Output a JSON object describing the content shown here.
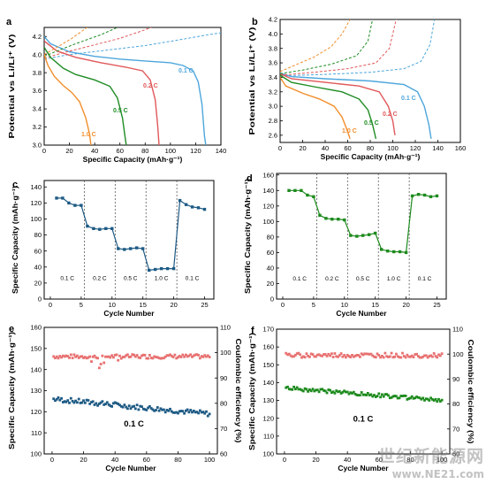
{
  "colors": {
    "c01": "#4da6dc",
    "c02": "#e15759",
    "c05": "#1e8c23",
    "c10": "#f28e2b",
    "blue": "#1d5a84",
    "red": "#e87070",
    "green": "#1d8a1d"
  },
  "watermark": {
    "line1": "世纪新能源网",
    "line2": "www.NE21.com"
  },
  "chart_data": [
    {
      "id": "a",
      "panel_label": "a",
      "type": "line",
      "xlabel": "Specific Capacity (mAh·g⁻¹)",
      "ylabel": "Potential vs Li/Li⁺ (V)",
      "xlim": [
        0,
        140
      ],
      "ylim": [
        3.0,
        4.3
      ],
      "xticks": [
        0,
        20,
        40,
        60,
        80,
        100,
        120,
        140
      ],
      "yticks": [
        3.0,
        3.2,
        3.4,
        3.6,
        3.8,
        4.0,
        4.2
      ],
      "yticklabels": [
        "3.0",
        "3.2",
        "3.4",
        "3.6",
        "3.8",
        "4.0",
        "4.2"
      ],
      "series": [
        {
          "name": "0.1 C",
          "color": "c01",
          "discharge": [
            [
              0,
              4.2
            ],
            [
              5,
              4.12
            ],
            [
              20,
              4.03
            ],
            [
              40,
              3.98
            ],
            [
              60,
              3.95
            ],
            [
              80,
              3.93
            ],
            [
              100,
              3.91
            ],
            [
              110,
              3.88
            ],
            [
              118,
              3.82
            ],
            [
              122,
              3.7
            ],
            [
              125,
              3.45
            ],
            [
              127,
              3.1
            ],
            [
              128,
              3.0
            ]
          ],
          "charge": [
            [
              0,
              3.95
            ],
            [
              20,
              4.0
            ],
            [
              50,
              4.05
            ],
            [
              80,
              4.1
            ],
            [
              110,
              4.17
            ],
            [
              130,
              4.22
            ],
            [
              145,
              4.25
            ]
          ]
        },
        {
          "name": "0.2 C",
          "color": "c02",
          "discharge": [
            [
              0,
              4.15
            ],
            [
              10,
              4.04
            ],
            [
              25,
              3.97
            ],
            [
              45,
              3.91
            ],
            [
              65,
              3.86
            ],
            [
              78,
              3.82
            ],
            [
              84,
              3.72
            ],
            [
              88,
              3.5
            ],
            [
              90,
              3.2
            ],
            [
              91,
              3.0
            ]
          ],
          "charge": [
            [
              0,
              3.96
            ],
            [
              15,
              4.02
            ],
            [
              35,
              4.09
            ],
            [
              60,
              4.18
            ],
            [
              75,
              4.25
            ],
            [
              85,
              4.3
            ]
          ]
        },
        {
          "name": "0.5 C",
          "color": "c05",
          "discharge": [
            [
              0,
              4.08
            ],
            [
              5,
              3.97
            ],
            [
              15,
              3.85
            ],
            [
              25,
              3.78
            ],
            [
              40,
              3.72
            ],
            [
              52,
              3.65
            ],
            [
              58,
              3.52
            ],
            [
              62,
              3.3
            ],
            [
              64,
              3.1
            ],
            [
              65,
              3.0
            ]
          ],
          "charge": [
            [
              0,
              3.98
            ],
            [
              12,
              4.05
            ],
            [
              25,
              4.12
            ],
            [
              45,
              4.22
            ],
            [
              58,
              4.3
            ]
          ]
        },
        {
          "name": "1.0 C",
          "color": "c10",
          "discharge": [
            [
              0,
              4.0
            ],
            [
              3,
              3.88
            ],
            [
              8,
              3.76
            ],
            [
              15,
              3.66
            ],
            [
              22,
              3.58
            ],
            [
              28,
              3.48
            ],
            [
              33,
              3.3
            ],
            [
              36,
              3.12
            ],
            [
              37,
              3.0
            ]
          ],
          "charge": [
            [
              0,
              4.0
            ],
            [
              10,
              4.08
            ],
            [
              22,
              4.18
            ],
            [
              34,
              4.3
            ]
          ]
        }
      ],
      "annotations": [
        {
          "text": "0.1 C",
          "color": "c01"
        },
        {
          "text": "0.2 C",
          "color": "c02"
        },
        {
          "text": "0.5 C",
          "color": "c05"
        },
        {
          "text": "1.0 C",
          "color": "c10"
        }
      ]
    },
    {
      "id": "b",
      "panel_label": "b",
      "type": "line",
      "xlabel": "Specific Capacity (mAh·g⁻¹)",
      "ylabel": "Potential vs Li/Li⁺ (V)",
      "xlim": [
        0,
        160
      ],
      "ylim": [
        2.5,
        4.2
      ],
      "xticks": [
        0,
        20,
        40,
        60,
        80,
        100,
        120,
        140,
        160
      ],
      "yticks": [
        2.6,
        2.8,
        3.0,
        3.2,
        3.4,
        3.6,
        3.8,
        4.0,
        4.2
      ],
      "yticklabels": [
        "2.6",
        "2.8",
        "3.0",
        "3.2",
        "3.4",
        "3.6",
        "3.8",
        "4.0",
        "4.2"
      ],
      "series": [
        {
          "name": "0.1 C",
          "color": "c01",
          "discharge": [
            [
              0,
              3.46
            ],
            [
              10,
              3.41
            ],
            [
              40,
              3.38
            ],
            [
              80,
              3.35
            ],
            [
              110,
              3.3
            ],
            [
              122,
              3.2
            ],
            [
              128,
              3.0
            ],
            [
              132,
              2.75
            ],
            [
              134,
              2.55
            ]
          ],
          "charge": [
            [
              0,
              3.42
            ],
            [
              40,
              3.44
            ],
            [
              80,
              3.47
            ],
            [
              110,
              3.52
            ],
            [
              125,
              3.62
            ],
            [
              133,
              3.85
            ],
            [
              137,
              4.2
            ]
          ]
        },
        {
          "name": "0.2 C",
          "color": "c02",
          "discharge": [
            [
              0,
              3.45
            ],
            [
              10,
              3.38
            ],
            [
              40,
              3.33
            ],
            [
              70,
              3.28
            ],
            [
              88,
              3.2
            ],
            [
              96,
              3.0
            ],
            [
              100,
              2.8
            ],
            [
              102,
              2.6
            ]
          ],
          "charge": [
            [
              0,
              3.43
            ],
            [
              30,
              3.47
            ],
            [
              60,
              3.52
            ],
            [
              85,
              3.6
            ],
            [
              97,
              3.8
            ],
            [
              103,
              4.2
            ]
          ]
        },
        {
          "name": "0.5 C",
          "color": "c05",
          "discharge": [
            [
              0,
              3.43
            ],
            [
              10,
              3.33
            ],
            [
              30,
              3.27
            ],
            [
              55,
              3.2
            ],
            [
              70,
              3.1
            ],
            [
              78,
              2.95
            ],
            [
              82,
              2.75
            ],
            [
              85,
              2.55
            ]
          ],
          "charge": [
            [
              0,
              3.45
            ],
            [
              20,
              3.5
            ],
            [
              45,
              3.58
            ],
            [
              68,
              3.7
            ],
            [
              78,
              3.9
            ],
            [
              82,
              4.2
            ]
          ]
        },
        {
          "name": "1.0 C",
          "color": "c10",
          "discharge": [
            [
              0,
              3.4
            ],
            [
              5,
              3.28
            ],
            [
              20,
              3.18
            ],
            [
              35,
              3.1
            ],
            [
              48,
              3.0
            ],
            [
              55,
              2.85
            ],
            [
              60,
              2.65
            ],
            [
              62,
              2.55
            ]
          ],
          "charge": [
            [
              0,
              3.48
            ],
            [
              15,
              3.58
            ],
            [
              30,
              3.68
            ],
            [
              45,
              3.82
            ],
            [
              55,
              4.0
            ],
            [
              62,
              4.2
            ]
          ]
        }
      ],
      "annotations": [
        {
          "text": "0.1 C",
          "color": "c01"
        },
        {
          "text": "0.2 C",
          "color": "c02"
        },
        {
          "text": "0.5 C",
          "color": "c05"
        },
        {
          "text": "1.0 C",
          "color": "c10"
        }
      ]
    },
    {
      "id": "c",
      "panel_label": "c",
      "type": "line",
      "xlabel": "Cycle Number",
      "ylabel": "Specific Capacity (mAh·g⁻¹)",
      "xlim": [
        -1,
        26.5
      ],
      "ylim": [
        0,
        148
      ],
      "xticks": [
        0,
        5,
        10,
        15,
        20,
        25
      ],
      "yticks": [
        0,
        20,
        40,
        60,
        80,
        100,
        120,
        140
      ],
      "dividers": [
        5.5,
        10.5,
        15.5,
        20.5
      ],
      "rate_labels": [
        "0.1 C",
        "0.2 C",
        "0.5 C",
        "1.0 C",
        "0.1 C"
      ],
      "series": [
        {
          "name": "capacity",
          "color": "blue",
          "x": [
            1,
            2,
            3,
            4,
            5,
            6,
            7,
            8,
            9,
            10,
            11,
            12,
            13,
            14,
            15,
            16,
            17,
            18,
            19,
            20,
            21,
            22,
            23,
            24,
            25
          ],
          "y": [
            126,
            126,
            120,
            117,
            117,
            91,
            88,
            87,
            88,
            88,
            63,
            62,
            63,
            64,
            63,
            36,
            37,
            38,
            38,
            38,
            123,
            118,
            115,
            114,
            112
          ]
        }
      ]
    },
    {
      "id": "d",
      "panel_label": "d",
      "type": "line",
      "xlabel": "Cycle Number",
      "ylabel": "Specific Capacity (mAh·g⁻¹)",
      "xlim": [
        -1,
        26.5
      ],
      "ylim": [
        0,
        162
      ],
      "xticks": [
        0,
        5,
        10,
        15,
        20,
        25
      ],
      "yticks": [
        0,
        20,
        40,
        60,
        80,
        100,
        120,
        140,
        160
      ],
      "dividers": [
        5.5,
        10.5,
        15.5,
        20.5
      ],
      "rate_labels": [
        "0.1 C",
        "0.2 C",
        "0.5 C",
        "1.0 C",
        "0.1 C"
      ],
      "series": [
        {
          "name": "capacity",
          "color": "green",
          "x": [
            1,
            2,
            3,
            4,
            5,
            6,
            7,
            8,
            9,
            10,
            11,
            12,
            13,
            14,
            15,
            16,
            17,
            18,
            19,
            20,
            21,
            22,
            23,
            24,
            25
          ],
          "y": [
            140,
            140,
            140,
            134,
            132,
            108,
            104,
            103,
            103,
            102,
            82,
            81,
            82,
            83,
            85,
            64,
            62,
            61,
            61,
            60,
            133,
            135,
            134,
            132,
            133
          ]
        }
      ]
    },
    {
      "id": "e",
      "panel_label": "e",
      "type": "scatter",
      "xlabel": "Cycle Number",
      "ylabel": "Specific Capacity (mAh·g⁻¹)",
      "y2label": "Coulombic efficiency (%)",
      "xlim": [
        -5,
        105
      ],
      "ylim": [
        100,
        160
      ],
      "y2lim": [
        60,
        110
      ],
      "xticks": [
        0,
        20,
        40,
        60,
        80,
        100
      ],
      "yticks": [
        100,
        110,
        120,
        130,
        140,
        150,
        160
      ],
      "y2ticks": [
        60,
        70,
        80,
        90,
        100,
        110
      ],
      "rate_text": "0.1 C",
      "capacity": {
        "color": "blue",
        "start": 126.0,
        "end": 119.0,
        "noise": 1.2
      },
      "efficiency": {
        "color": "red",
        "mean": 98.5,
        "noise": 0.8,
        "dips": [
          [
            25,
            96.5
          ],
          [
            30,
            94.0
          ],
          [
            31,
            95.5
          ],
          [
            33,
            96.0
          ],
          [
            42,
            97.0
          ]
        ]
      }
    },
    {
      "id": "f",
      "panel_label": "f",
      "type": "scatter",
      "xlabel": "Cycle Number",
      "ylabel": "Specific Capacity (mAh·g⁻¹)",
      "y2label": "Coulombic efficiency (%)",
      "xlim": [
        -5,
        105
      ],
      "ylim": [
        100,
        170
      ],
      "y2lim": [
        60,
        110
      ],
      "xticks": [
        0,
        20,
        40,
        60,
        80,
        100
      ],
      "yticks": [
        100,
        110,
        120,
        130,
        140,
        150,
        160,
        170
      ],
      "y2ticks": [
        60,
        70,
        80,
        90,
        100,
        110
      ],
      "rate_text": "0.1 C",
      "capacity": {
        "color": "green",
        "start": 137.0,
        "end": 130.0,
        "noise": 1.0
      },
      "efficiency": {
        "color": "red",
        "mean": 99.5,
        "noise": 0.9,
        "dips": []
      }
    }
  ]
}
